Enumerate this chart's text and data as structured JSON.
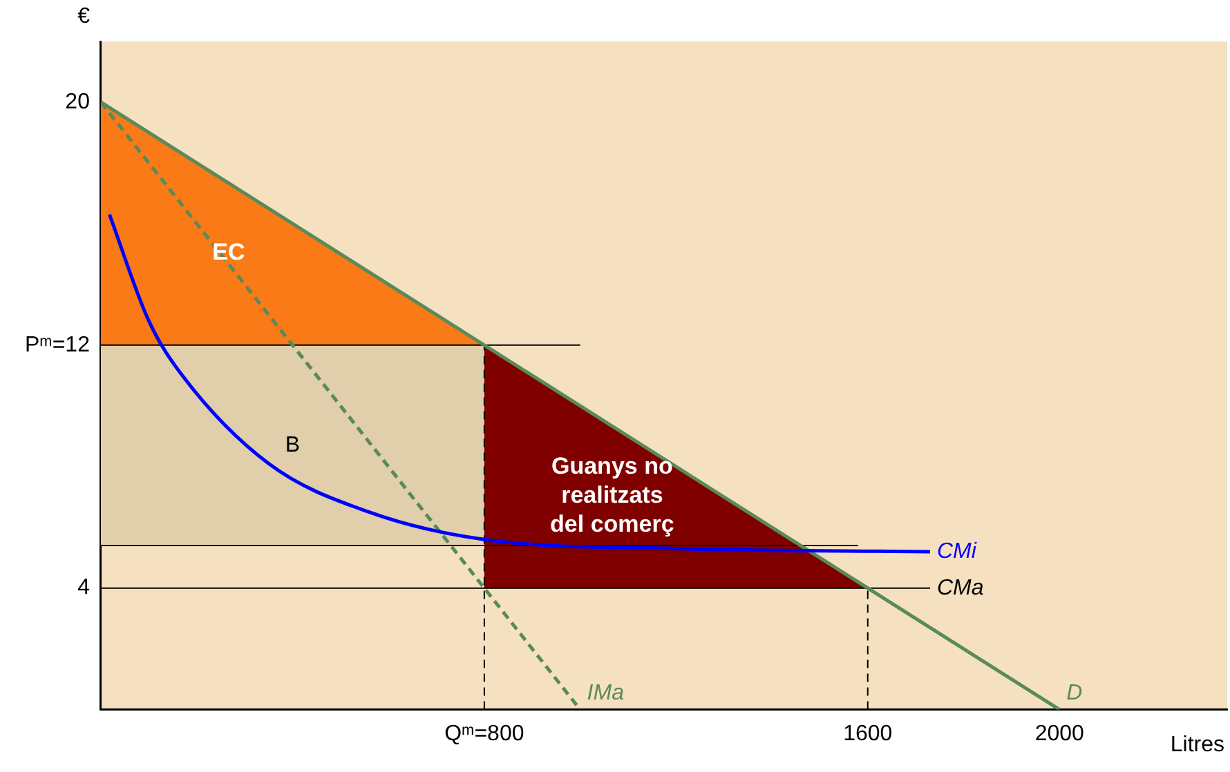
{
  "chart_data": {
    "type": "line",
    "xlabel": "Litres",
    "ylabel": "€",
    "xlim": [
      0,
      2350
    ],
    "ylim": [
      0,
      22
    ],
    "xticks": [
      {
        "value": 800,
        "label": "Qᵐ=800"
      },
      1600,
      2000
    ],
    "yticks": [
      4,
      {
        "value": 12,
        "label": "Pᵐ=12"
      },
      20
    ],
    "grid": false,
    "legend": false,
    "marker": "none",
    "series": [
      {
        "type": "area",
        "name": "EC",
        "color": "#f97a17",
        "x": [
          0,
          800,
          0
        ],
        "values": [
          20,
          12,
          12
        ]
      },
      {
        "type": "area",
        "name": "B",
        "color": "#e0cfaa",
        "x": [
          0,
          800,
          800,
          0
        ],
        "values": [
          12,
          12,
          5.4,
          5.4
        ]
      },
      {
        "type": "area",
        "name": "Guanys no\nrealitzats\ndel comerç",
        "color": "#800000",
        "x": [
          800,
          1600,
          800
        ],
        "values": [
          12,
          4,
          4
        ]
      },
      {
        "color": "#000000",
        "line_style": "solid",
        "x": [
          0,
          1000
        ],
        "values": [
          12,
          12
        ]
      },
      {
        "color": "#000000",
        "line_style": "solid",
        "x": [
          0,
          1580
        ],
        "values": [
          5.4,
          5.4
        ]
      },
      {
        "name": "CMa",
        "color": "#000000",
        "line_style": "solid",
        "x": [
          0,
          1730
        ],
        "values": [
          4,
          4
        ]
      },
      {
        "color": "#000000",
        "line_style": "dashed",
        "x": [
          800,
          800
        ],
        "values": [
          0,
          12
        ]
      },
      {
        "color": "#000000",
        "line_style": "dashed",
        "x": [
          1600,
          1600
        ],
        "values": [
          0,
          4
        ]
      },
      {
        "name": "IMa",
        "color": "#5a8a5a",
        "line_style": "dashed",
        "x": [
          0,
          1000
        ],
        "values": [
          20,
          0
        ]
      },
      {
        "name": "D",
        "color": "#5a8a5a",
        "line_style": "solid",
        "x": [
          0,
          2000
        ],
        "values": [
          20,
          0
        ]
      },
      {
        "name": "CMi",
        "color": "#0000ff",
        "line_style": "solid",
        "x": [
          18,
          100,
          170,
          350,
          560,
          800,
          1200,
          1730
        ],
        "values": [
          16.3,
          12.8,
          11,
          8.1,
          6.5,
          5.6,
          5.3,
          5.2
        ]
      }
    ]
  }
}
